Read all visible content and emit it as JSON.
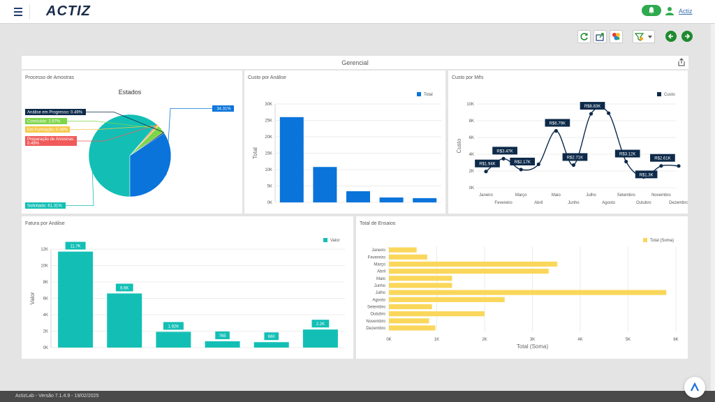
{
  "app": {
    "logo": "ACTIZ",
    "user_label": "Actiz"
  },
  "toolbar": {
    "icons": [
      "refresh-icon",
      "export-icon",
      "palette-icon",
      "filter-icon",
      "previous-icon",
      "next-icon"
    ]
  },
  "dashboard": {
    "title": "Gerencial"
  },
  "panels": {
    "processo": {
      "title": "Processo de Amostras"
    },
    "custo_analise": {
      "title": "Custo por Análise"
    },
    "custo_mes": {
      "title": "Custo por Mês"
    },
    "fatura": {
      "title": "Fatura por Análise"
    },
    "ensaios": {
      "title": "Total de Ensaios"
    }
  },
  "footer": {
    "version": "ActizLab - Versão 7.1.4.9 - 19/02/2025"
  },
  "colors": {
    "accent": "#1f8a2e",
    "blue": "#0a74da",
    "teal": "#13bfb5",
    "navy": "#0d2a4a",
    "yellow": "#fad75a"
  },
  "chart_data": [
    {
      "type": "pie",
      "title": "Estados",
      "slices": [
        {
          "label": "Solicitado: 61.31%",
          "value": 61.31,
          "color": "#13bfb5"
        },
        {
          "label": "Preparação de Amostras: 0.49%",
          "value": 0.49,
          "color": "#f05a5a"
        },
        {
          "label": "Em Formação: 0.49%",
          "value": 0.49,
          "color": "#f6c94a"
        },
        {
          "label": "Concluído: 2.97%",
          "value": 2.97,
          "color": "#7dd64a"
        },
        {
          "label": "Análise em Progresso: 0.49%",
          "value": 0.49,
          "color": "#0d2a4a"
        },
        {
          "label": ": 34.31%",
          "value": 34.31,
          "color": "#0a74da"
        }
      ]
    },
    {
      "type": "bar",
      "legend": [
        "Total"
      ],
      "ylabel": "Total",
      "ylim": [
        0,
        30000
      ],
      "yticks": [
        "0K",
        "5K",
        "10K",
        "15K",
        "20K",
        "25K",
        "30K"
      ],
      "values": [
        26000,
        10800,
        3400,
        1500,
        1300
      ]
    },
    {
      "type": "line",
      "legend": [
        "Custo"
      ],
      "ylabel": "Custo",
      "ylim": [
        0,
        10000
      ],
      "yticks": [
        "0K",
        "2K",
        "4K",
        "6K",
        "8K",
        "10K"
      ],
      "categories": [
        "Janeiro",
        "Fevereiro",
        "Março",
        "Abril",
        "Maio",
        "Junho",
        "Julho",
        "Agosto",
        "Setembro",
        "Outubro",
        "Novembro",
        "Dezembro"
      ],
      "values": [
        1940,
        3470,
        2170,
        2800,
        6790,
        2710,
        8830,
        8900,
        3120,
        1300,
        2610,
        2600
      ],
      "point_labels": [
        "R$1.94K",
        "R$3.47K",
        "R$2.17K",
        "",
        "R$6.79K",
        "R$2.71K",
        "R$8.83K",
        "",
        "R$3.12K",
        "R$1.3K",
        "R$2.61K",
        ""
      ]
    },
    {
      "type": "bar",
      "legend": [
        "Valor"
      ],
      "ylabel": "Valor",
      "ylim": [
        0,
        12000
      ],
      "yticks": [
        "0K",
        "2K",
        "4K",
        "6K",
        "8K",
        "10K",
        "12K"
      ],
      "values": [
        11700,
        6600,
        1920,
        765,
        660,
        2200
      ],
      "data_labels": [
        "11.7K",
        "6.6K",
        "1.92K",
        "765",
        "660",
        "2.2K"
      ]
    },
    {
      "type": "bar",
      "orientation": "horizontal",
      "legend": [
        "Total (Soma)"
      ],
      "xlabel": "Total (Soma)",
      "xlim": [
        0,
        6000
      ],
      "xticks": [
        "0K",
        "1K",
        "2K",
        "3K",
        "4K",
        "5K",
        "6K"
      ],
      "categories": [
        "Janeiro",
        "Fevereiro",
        "Março",
        "Abril",
        "Maio",
        "Junho",
        "Julho",
        "Agosto",
        "Setembro",
        "Outubro",
        "Novembro",
        "Dezembro"
      ],
      "values": [
        580,
        800,
        3520,
        3340,
        1320,
        1320,
        5800,
        2420,
        900,
        2000,
        840,
        970
      ]
    }
  ]
}
